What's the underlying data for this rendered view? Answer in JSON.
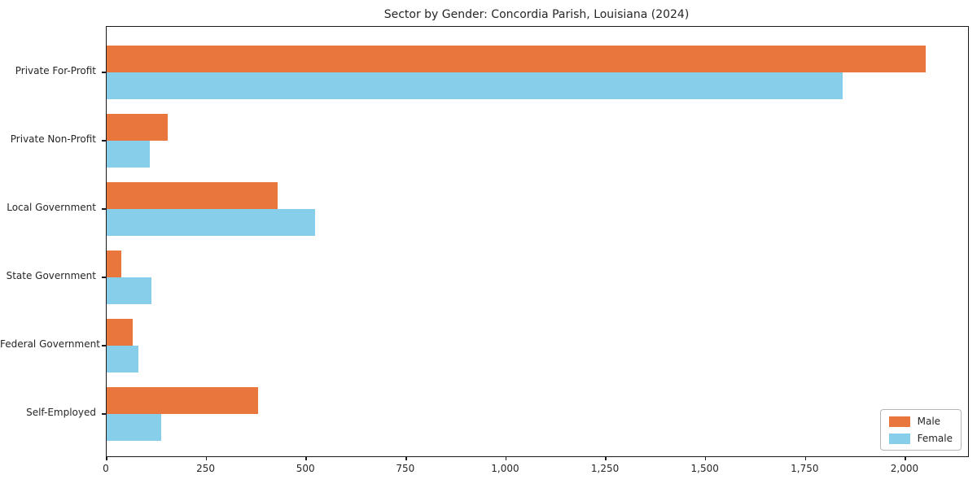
{
  "chart_data": {
    "type": "bar",
    "orientation": "horizontal",
    "title": "Sector by Gender: Concordia Parish, Louisiana (2024)",
    "categories": [
      "Private For-Profit",
      "Private Non-Profit",
      "Local Government",
      "State Government",
      "Federal Government",
      "Self-Employed"
    ],
    "series": [
      {
        "name": "Male",
        "color": "#e8763d",
        "values": [
          2050,
          152,
          428,
          37,
          65,
          379
        ]
      },
      {
        "name": "Female",
        "color": "#87ceeb",
        "values": [
          1843,
          108,
          521,
          112,
          79,
          137
        ]
      }
    ],
    "xlabel": "",
    "ylabel": "",
    "xlim": [
      0,
      2157
    ],
    "xticks": [
      0,
      250,
      500,
      750,
      1000,
      1250,
      1500,
      1750,
      2000
    ],
    "xtick_labels": [
      "0",
      "250",
      "500",
      "750",
      "1,000",
      "1,250",
      "1,500",
      "1,750",
      "2,000"
    ],
    "grid": false,
    "legend": {
      "position": "lower right"
    }
  }
}
